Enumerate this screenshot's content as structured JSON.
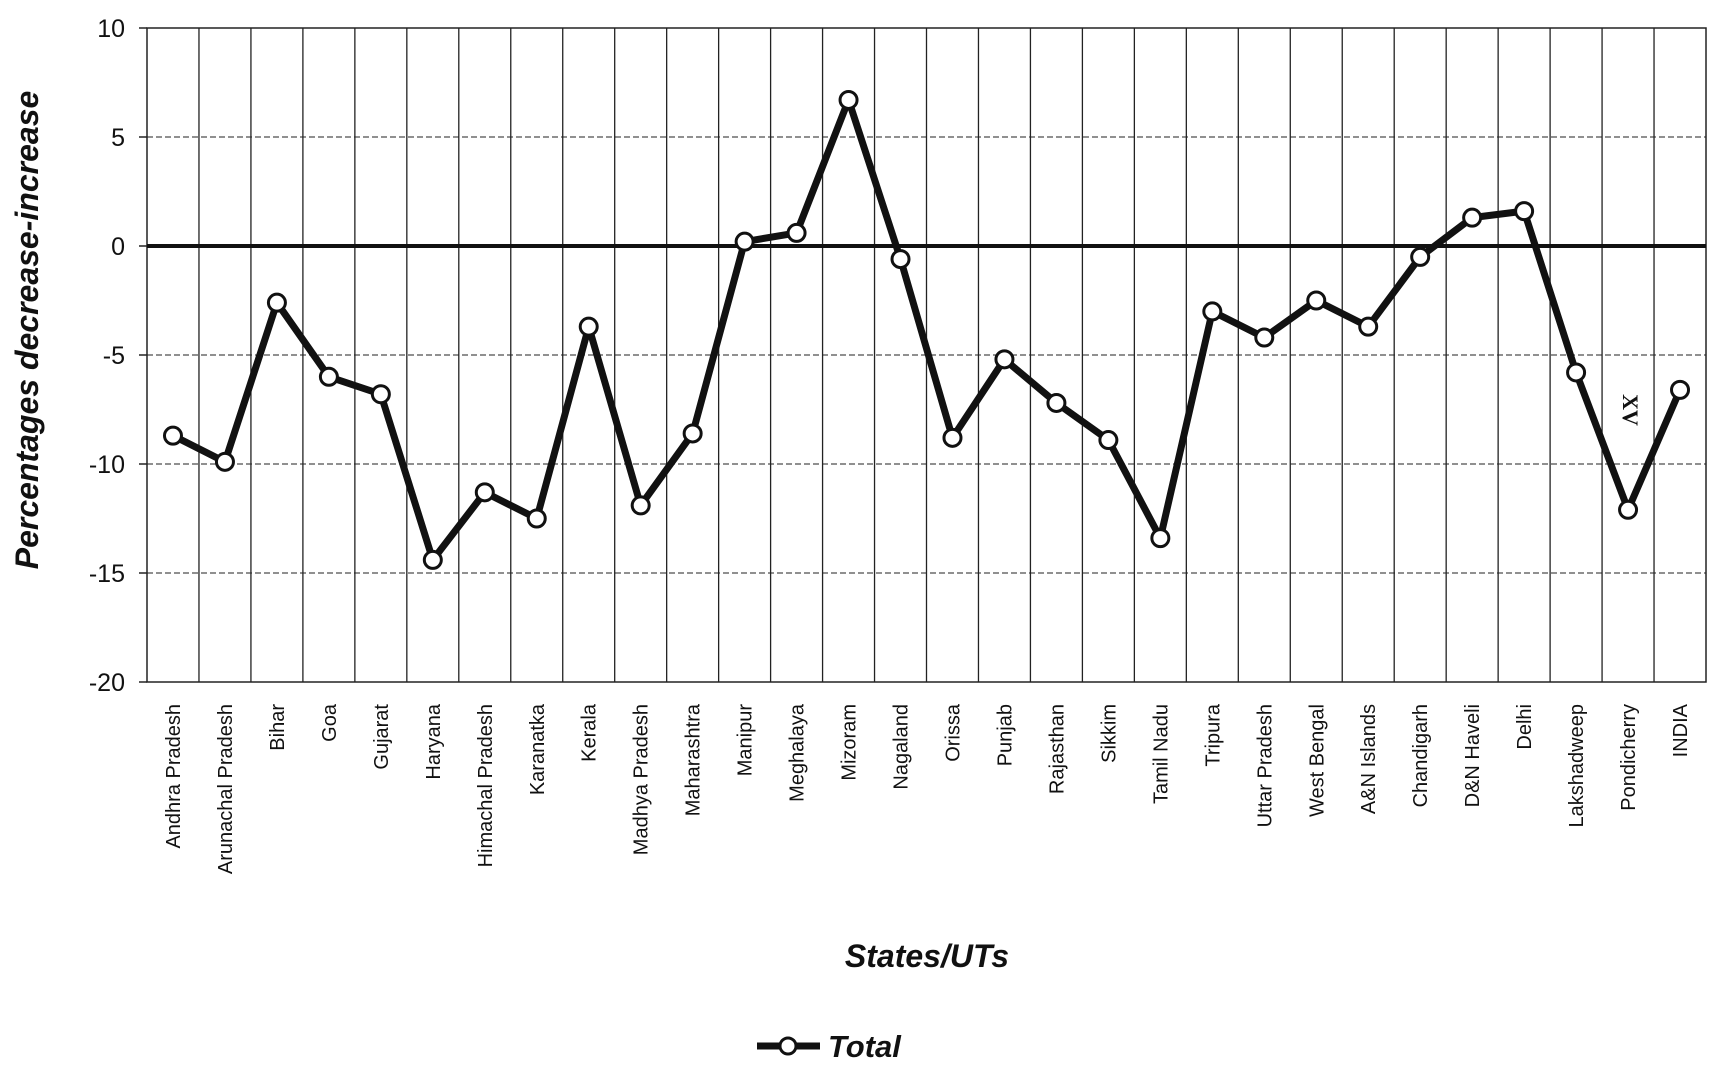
{
  "chart_data": {
    "type": "line",
    "xlabel": "States/UTs",
    "ylabel": "Percentages decrease-increase",
    "ylim": [
      -20,
      10
    ],
    "yticks": [
      10,
      5,
      0,
      -5,
      -10,
      -15,
      -20
    ],
    "grid": true,
    "legend_position": "bottom-center",
    "categories": [
      "Andhra Pradesh",
      "Arunachal Pradesh",
      "Bihar",
      "Goa",
      "Gujarat",
      "Haryana",
      "Himachal Pradesh",
      "Karanatka",
      "Kerala",
      "Madhya Pradesh",
      "Maharashtra",
      "Manipur",
      "Meghalaya",
      "Mizoram",
      "Nagaland",
      "Orissa",
      "Punjab",
      "Rajasthan",
      "Sikkim",
      "Tamil Nadu",
      "Tripura",
      "Uttar Pradesh",
      "West Bengal",
      "A&N Islands",
      "Chandigarh",
      "D&N Haveli",
      "Delhi",
      "Lakshadweep",
      "Pondicherry",
      "INDIA"
    ],
    "series": [
      {
        "name": "Total",
        "values": [
          -8.7,
          -9.9,
          -2.6,
          -6.0,
          -6.8,
          -14.4,
          -11.3,
          -12.5,
          -3.7,
          -11.9,
          -8.6,
          0.2,
          0.6,
          6.7,
          -0.6,
          -8.8,
          -5.2,
          -7.2,
          -8.9,
          -13.4,
          -3.0,
          -4.2,
          -2.5,
          -3.7,
          -0.5,
          1.3,
          1.6,
          -5.8,
          -12.1,
          -6.6
        ]
      }
    ],
    "annotation": "XV"
  },
  "colors": {
    "line": "#111111",
    "grid": "#222222",
    "marker_fill": "#ffffff",
    "background": "#ffffff"
  }
}
